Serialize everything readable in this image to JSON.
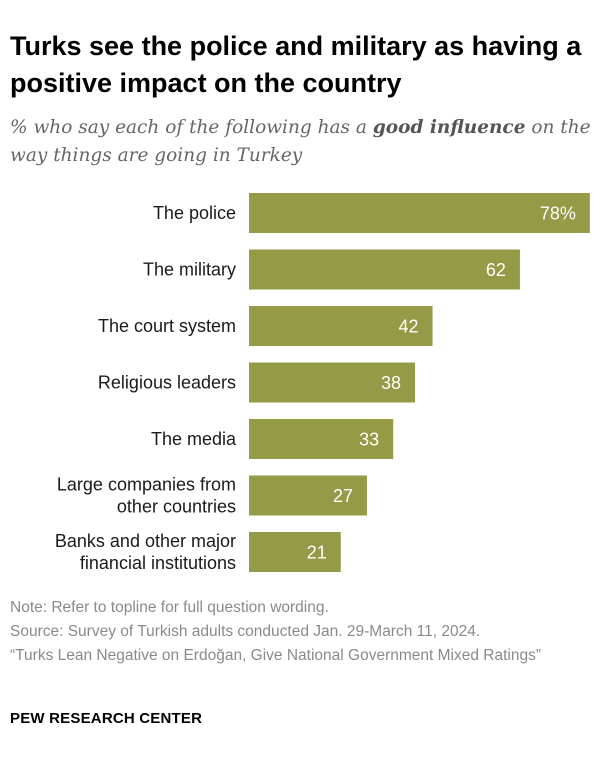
{
  "title": "Turks see the police and military as having a positive impact on the country",
  "subtitle": {
    "before": "% who say each of the following has a ",
    "emphasis": "good influence",
    "after": " on the way things are going in Turkey"
  },
  "chart_data": {
    "type": "bar",
    "orientation": "horizontal",
    "categories": [
      "The police",
      "The military",
      "The court system",
      "Religious leaders",
      "The media",
      "Large companies from other countries",
      "Banks and other major financial institutions"
    ],
    "category_lines": [
      [
        "The police"
      ],
      [
        "The military"
      ],
      [
        "The court system"
      ],
      [
        "Religious leaders"
      ],
      [
        "The media"
      ],
      [
        "Large companies from",
        "other countries"
      ],
      [
        "Banks and other major",
        "financial institutions"
      ]
    ],
    "values": [
      78,
      62,
      42,
      38,
      33,
      27,
      21
    ],
    "value_labels": [
      "78%",
      "62",
      "42",
      "38",
      "33",
      "27",
      "21"
    ],
    "xlim": [
      0,
      100
    ],
    "grid": false,
    "bar_color": "#949a45"
  },
  "notes": {
    "note": "Note: Refer to topline for full question wording.",
    "source": "Source: Survey of Turkish adults conducted Jan. 29-March 11, 2024.",
    "report": "“Turks Lean Negative on Erdoğan, Give National Government Mixed Ratings”"
  },
  "brand": "PEW RESEARCH CENTER"
}
